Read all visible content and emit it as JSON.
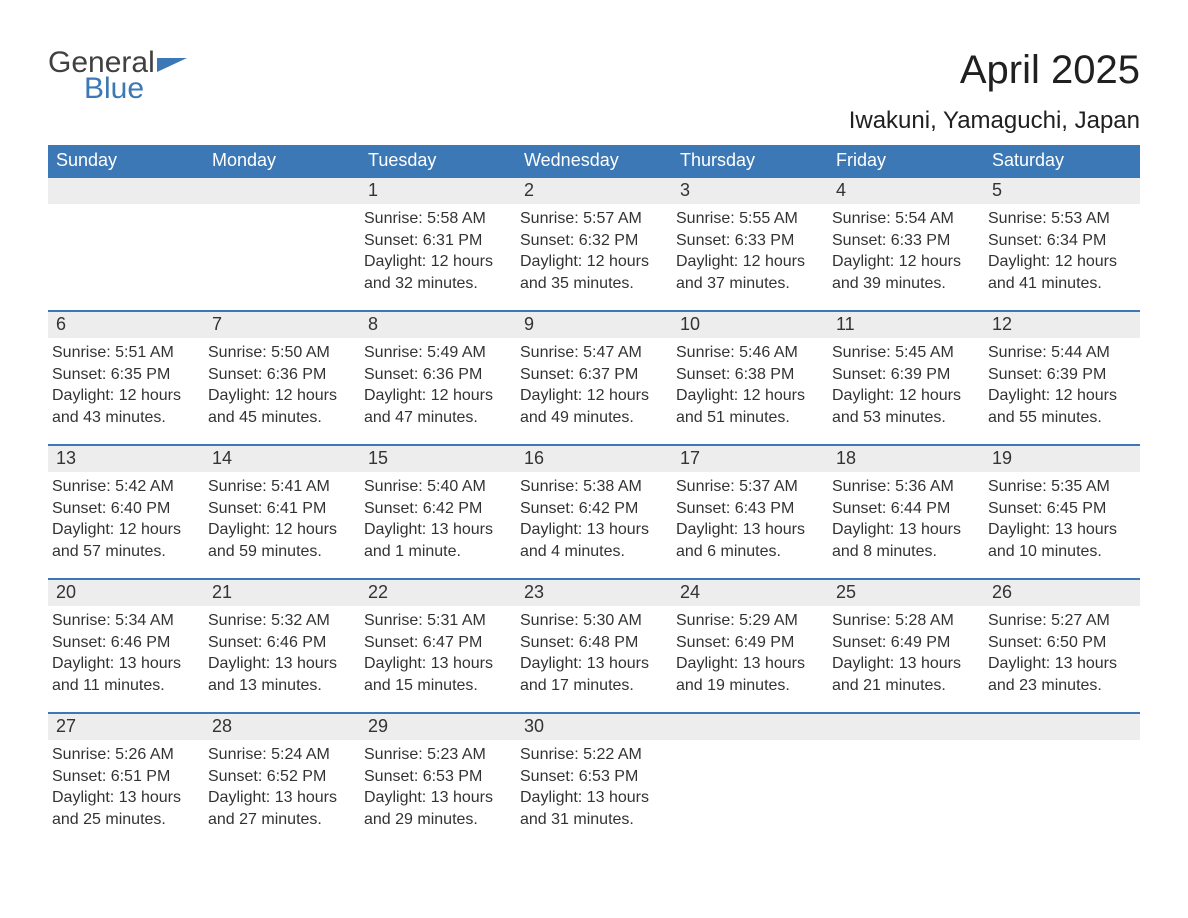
{
  "logo": {
    "word1": "General",
    "word2": "Blue"
  },
  "title": "April 2025",
  "location": "Iwakuni, Yamaguchi, Japan",
  "colors": {
    "header_blue": "#3b78b5",
    "daynum_bg": "#ededed",
    "text": "#333333",
    "page_bg": "#ffffff"
  },
  "days_of_week": [
    "Sunday",
    "Monday",
    "Tuesday",
    "Wednesday",
    "Thursday",
    "Friday",
    "Saturday"
  ],
  "weeks": [
    [
      {
        "num": "",
        "sunrise": "",
        "sunset": "",
        "daylight": ""
      },
      {
        "num": "",
        "sunrise": "",
        "sunset": "",
        "daylight": ""
      },
      {
        "num": "1",
        "sunrise": "Sunrise: 5:58 AM",
        "sunset": "Sunset: 6:31 PM",
        "daylight": "Daylight: 12 hours and 32 minutes."
      },
      {
        "num": "2",
        "sunrise": "Sunrise: 5:57 AM",
        "sunset": "Sunset: 6:32 PM",
        "daylight": "Daylight: 12 hours and 35 minutes."
      },
      {
        "num": "3",
        "sunrise": "Sunrise: 5:55 AM",
        "sunset": "Sunset: 6:33 PM",
        "daylight": "Daylight: 12 hours and 37 minutes."
      },
      {
        "num": "4",
        "sunrise": "Sunrise: 5:54 AM",
        "sunset": "Sunset: 6:33 PM",
        "daylight": "Daylight: 12 hours and 39 minutes."
      },
      {
        "num": "5",
        "sunrise": "Sunrise: 5:53 AM",
        "sunset": "Sunset: 6:34 PM",
        "daylight": "Daylight: 12 hours and 41 minutes."
      }
    ],
    [
      {
        "num": "6",
        "sunrise": "Sunrise: 5:51 AM",
        "sunset": "Sunset: 6:35 PM",
        "daylight": "Daylight: 12 hours and 43 minutes."
      },
      {
        "num": "7",
        "sunrise": "Sunrise: 5:50 AM",
        "sunset": "Sunset: 6:36 PM",
        "daylight": "Daylight: 12 hours and 45 minutes."
      },
      {
        "num": "8",
        "sunrise": "Sunrise: 5:49 AM",
        "sunset": "Sunset: 6:36 PM",
        "daylight": "Daylight: 12 hours and 47 minutes."
      },
      {
        "num": "9",
        "sunrise": "Sunrise: 5:47 AM",
        "sunset": "Sunset: 6:37 PM",
        "daylight": "Daylight: 12 hours and 49 minutes."
      },
      {
        "num": "10",
        "sunrise": "Sunrise: 5:46 AM",
        "sunset": "Sunset: 6:38 PM",
        "daylight": "Daylight: 12 hours and 51 minutes."
      },
      {
        "num": "11",
        "sunrise": "Sunrise: 5:45 AM",
        "sunset": "Sunset: 6:39 PM",
        "daylight": "Daylight: 12 hours and 53 minutes."
      },
      {
        "num": "12",
        "sunrise": "Sunrise: 5:44 AM",
        "sunset": "Sunset: 6:39 PM",
        "daylight": "Daylight: 12 hours and 55 minutes."
      }
    ],
    [
      {
        "num": "13",
        "sunrise": "Sunrise: 5:42 AM",
        "sunset": "Sunset: 6:40 PM",
        "daylight": "Daylight: 12 hours and 57 minutes."
      },
      {
        "num": "14",
        "sunrise": "Sunrise: 5:41 AM",
        "sunset": "Sunset: 6:41 PM",
        "daylight": "Daylight: 12 hours and 59 minutes."
      },
      {
        "num": "15",
        "sunrise": "Sunrise: 5:40 AM",
        "sunset": "Sunset: 6:42 PM",
        "daylight": "Daylight: 13 hours and 1 minute."
      },
      {
        "num": "16",
        "sunrise": "Sunrise: 5:38 AM",
        "sunset": "Sunset: 6:42 PM",
        "daylight": "Daylight: 13 hours and 4 minutes."
      },
      {
        "num": "17",
        "sunrise": "Sunrise: 5:37 AM",
        "sunset": "Sunset: 6:43 PM",
        "daylight": "Daylight: 13 hours and 6 minutes."
      },
      {
        "num": "18",
        "sunrise": "Sunrise: 5:36 AM",
        "sunset": "Sunset: 6:44 PM",
        "daylight": "Daylight: 13 hours and 8 minutes."
      },
      {
        "num": "19",
        "sunrise": "Sunrise: 5:35 AM",
        "sunset": "Sunset: 6:45 PM",
        "daylight": "Daylight: 13 hours and 10 minutes."
      }
    ],
    [
      {
        "num": "20",
        "sunrise": "Sunrise: 5:34 AM",
        "sunset": "Sunset: 6:46 PM",
        "daylight": "Daylight: 13 hours and 11 minutes."
      },
      {
        "num": "21",
        "sunrise": "Sunrise: 5:32 AM",
        "sunset": "Sunset: 6:46 PM",
        "daylight": "Daylight: 13 hours and 13 minutes."
      },
      {
        "num": "22",
        "sunrise": "Sunrise: 5:31 AM",
        "sunset": "Sunset: 6:47 PM",
        "daylight": "Daylight: 13 hours and 15 minutes."
      },
      {
        "num": "23",
        "sunrise": "Sunrise: 5:30 AM",
        "sunset": "Sunset: 6:48 PM",
        "daylight": "Daylight: 13 hours and 17 minutes."
      },
      {
        "num": "24",
        "sunrise": "Sunrise: 5:29 AM",
        "sunset": "Sunset: 6:49 PM",
        "daylight": "Daylight: 13 hours and 19 minutes."
      },
      {
        "num": "25",
        "sunrise": "Sunrise: 5:28 AM",
        "sunset": "Sunset: 6:49 PM",
        "daylight": "Daylight: 13 hours and 21 minutes."
      },
      {
        "num": "26",
        "sunrise": "Sunrise: 5:27 AM",
        "sunset": "Sunset: 6:50 PM",
        "daylight": "Daylight: 13 hours and 23 minutes."
      }
    ],
    [
      {
        "num": "27",
        "sunrise": "Sunrise: 5:26 AM",
        "sunset": "Sunset: 6:51 PM",
        "daylight": "Daylight: 13 hours and 25 minutes."
      },
      {
        "num": "28",
        "sunrise": "Sunrise: 5:24 AM",
        "sunset": "Sunset: 6:52 PM",
        "daylight": "Daylight: 13 hours and 27 minutes."
      },
      {
        "num": "29",
        "sunrise": "Sunrise: 5:23 AM",
        "sunset": "Sunset: 6:53 PM",
        "daylight": "Daylight: 13 hours and 29 minutes."
      },
      {
        "num": "30",
        "sunrise": "Sunrise: 5:22 AM",
        "sunset": "Sunset: 6:53 PM",
        "daylight": "Daylight: 13 hours and 31 minutes."
      },
      {
        "num": "",
        "sunrise": "",
        "sunset": "",
        "daylight": ""
      },
      {
        "num": "",
        "sunrise": "",
        "sunset": "",
        "daylight": ""
      },
      {
        "num": "",
        "sunrise": "",
        "sunset": "",
        "daylight": ""
      }
    ]
  ]
}
